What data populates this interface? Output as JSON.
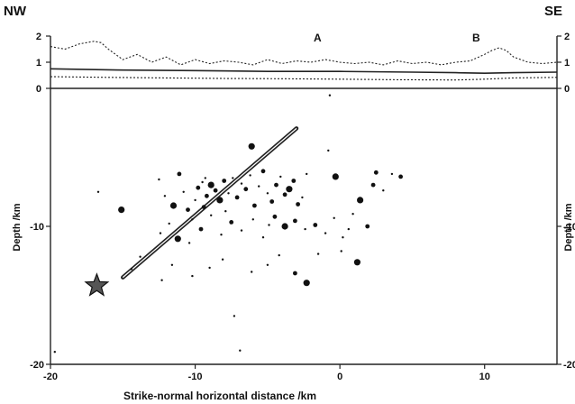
{
  "figure": {
    "corner_left": "NW",
    "corner_right": "SE",
    "marker_a": "A",
    "marker_b": "B"
  },
  "chart_data": [
    {
      "type": "line",
      "title": "",
      "ylim": [
        0,
        2
      ],
      "yticks": [
        "0",
        "1",
        "2"
      ],
      "xlim": [
        -20,
        15
      ],
      "grid": false,
      "series": [
        {
          "style": "dashed-upper",
          "x": [
            -20,
            -19,
            -18,
            -17,
            -16.5,
            -16,
            -15,
            -14,
            -13,
            -12,
            -11,
            -10,
            -9,
            -8,
            -7,
            -6,
            -5,
            -4,
            -3,
            -2,
            -1,
            0,
            1,
            2,
            3,
            4,
            5,
            6,
            7,
            8,
            9,
            10,
            10.5,
            11,
            11.5,
            12,
            13,
            14,
            15
          ],
          "values": [
            1.6,
            1.5,
            1.7,
            1.8,
            1.75,
            1.5,
            1.1,
            1.3,
            1.0,
            1.2,
            0.9,
            1.1,
            0.95,
            1.05,
            1.0,
            0.9,
            1.1,
            0.95,
            1.05,
            1.0,
            1.1,
            1.0,
            0.95,
            1.0,
            0.9,
            1.05,
            0.95,
            1.0,
            0.9,
            1.0,
            1.05,
            1.3,
            1.45,
            1.55,
            1.45,
            1.2,
            1.0,
            0.95,
            1.0
          ]
        },
        {
          "style": "solid",
          "x": [
            -20,
            -15,
            -10,
            -5,
            0,
            5,
            8,
            10,
            12,
            15
          ],
          "values": [
            0.75,
            0.7,
            0.68,
            0.65,
            0.65,
            0.62,
            0.6,
            0.58,
            0.6,
            0.62
          ]
        },
        {
          "style": "dashed-lower",
          "x": [
            -20,
            -16,
            -12,
            -8,
            -4,
            0,
            4,
            8,
            10,
            12,
            15
          ],
          "values": [
            0.45,
            0.42,
            0.4,
            0.38,
            0.37,
            0.35,
            0.33,
            0.32,
            0.35,
            0.4,
            0.42
          ]
        }
      ]
    },
    {
      "type": "scatter",
      "title": "",
      "xlabel": "Strike-normal horizontal distance /km",
      "ylabel": "Depth /km",
      "xlim": [
        -20,
        15
      ],
      "ylim": [
        -20,
        0
      ],
      "xticks": [
        "-20",
        "-10",
        "0",
        "10"
      ],
      "yticks": [
        "-10",
        "-20"
      ],
      "grid": false,
      "star": {
        "x": -16.8,
        "y": -14.3
      },
      "fault_line": {
        "x": [
          -15,
          -3
        ],
        "y": [
          -13.7,
          -2.9
        ]
      },
      "points": [
        {
          "x": -0.7,
          "y": -0.5,
          "s": 1
        },
        {
          "x": -0.8,
          "y": -4.5,
          "s": 1
        },
        {
          "x": -6.1,
          "y": -4.2,
          "s": 3
        },
        {
          "x": -16.7,
          "y": -7.5,
          "s": 1
        },
        {
          "x": -15.1,
          "y": -8.8,
          "s": 3
        },
        {
          "x": -12.5,
          "y": -6.6,
          "s": 1
        },
        {
          "x": -12.1,
          "y": -7.8,
          "s": 1
        },
        {
          "x": -11.5,
          "y": -8.5,
          "s": 3
        },
        {
          "x": -11.1,
          "y": -6.2,
          "s": 2
        },
        {
          "x": -10.8,
          "y": -7.5,
          "s": 1
        },
        {
          "x": -10.5,
          "y": -8.8,
          "s": 2
        },
        {
          "x": -10.2,
          "y": -9.5,
          "s": 1
        },
        {
          "x": -9.8,
          "y": -7.2,
          "s": 2
        },
        {
          "x": -9.5,
          "y": -6.8,
          "s": 1
        },
        {
          "x": -9.2,
          "y": -7.8,
          "s": 2
        },
        {
          "x": -8.9,
          "y": -7.0,
          "s": 3
        },
        {
          "x": -8.6,
          "y": -7.4,
          "s": 2
        },
        {
          "x": -8.3,
          "y": -8.1,
          "s": 3
        },
        {
          "x": -8.0,
          "y": -6.7,
          "s": 2
        },
        {
          "x": -7.7,
          "y": -7.6,
          "s": 1
        },
        {
          "x": -7.4,
          "y": -6.5,
          "s": 1
        },
        {
          "x": -7.1,
          "y": -7.9,
          "s": 2
        },
        {
          "x": -6.8,
          "y": -6.9,
          "s": 1
        },
        {
          "x": -6.5,
          "y": -7.3,
          "s": 2
        },
        {
          "x": -6.2,
          "y": -6.3,
          "s": 1
        },
        {
          "x": -5.9,
          "y": -8.5,
          "s": 2
        },
        {
          "x": -5.6,
          "y": -7.1,
          "s": 1
        },
        {
          "x": -5.3,
          "y": -6.0,
          "s": 2
        },
        {
          "x": -5.0,
          "y": -7.6,
          "s": 1
        },
        {
          "x": -4.7,
          "y": -8.2,
          "s": 2
        },
        {
          "x": -4.4,
          "y": -7.0,
          "s": 2
        },
        {
          "x": -4.1,
          "y": -6.4,
          "s": 1
        },
        {
          "x": -3.8,
          "y": -7.7,
          "s": 2
        },
        {
          "x": -3.5,
          "y": -7.3,
          "s": 3
        },
        {
          "x": -3.2,
          "y": -6.7,
          "s": 2
        },
        {
          "x": -2.9,
          "y": -8.4,
          "s": 2
        },
        {
          "x": -2.6,
          "y": -7.9,
          "s": 1
        },
        {
          "x": -2.3,
          "y": -6.2,
          "s": 1
        },
        {
          "x": -9.3,
          "y": -6.5,
          "s": 1
        },
        {
          "x": -10.0,
          "y": -8.1,
          "s": 1
        },
        {
          "x": -11.8,
          "y": -9.8,
          "s": 1
        },
        {
          "x": -12.4,
          "y": -10.5,
          "s": 1
        },
        {
          "x": -11.2,
          "y": -10.9,
          "s": 3
        },
        {
          "x": -10.4,
          "y": -11.2,
          "s": 1
        },
        {
          "x": -9.6,
          "y": -10.2,
          "s": 2
        },
        {
          "x": -8.9,
          "y": -9.2,
          "s": 1
        },
        {
          "x": -8.2,
          "y": -10.6,
          "s": 1
        },
        {
          "x": -7.5,
          "y": -9.7,
          "s": 2
        },
        {
          "x": -6.8,
          "y": -10.3,
          "s": 1
        },
        {
          "x": -6.0,
          "y": -9.5,
          "s": 1
        },
        {
          "x": -5.3,
          "y": -10.8,
          "s": 1
        },
        {
          "x": -4.5,
          "y": -9.3,
          "s": 2
        },
        {
          "x": -3.8,
          "y": -10.0,
          "s": 3
        },
        {
          "x": -3.1,
          "y": -9.6,
          "s": 2
        },
        {
          "x": -2.4,
          "y": -10.2,
          "s": 1
        },
        {
          "x": -1.7,
          "y": -9.9,
          "s": 2
        },
        {
          "x": -1.0,
          "y": -10.5,
          "s": 1
        },
        {
          "x": -0.4,
          "y": -9.4,
          "s": 1
        },
        {
          "x": 0.2,
          "y": -10.8,
          "s": 1
        },
        {
          "x": 0.9,
          "y": -9.1,
          "s": 1
        },
        {
          "x": 1.4,
          "y": -8.1,
          "s": 3
        },
        {
          "x": 1.9,
          "y": -10.0,
          "s": 2
        },
        {
          "x": 2.3,
          "y": -7.0,
          "s": 2
        },
        {
          "x": 2.5,
          "y": -6.1,
          "s": 2
        },
        {
          "x": 3.0,
          "y": -7.4,
          "s": 1
        },
        {
          "x": 3.6,
          "y": -6.2,
          "s": 1
        },
        {
          "x": 4.2,
          "y": -6.4,
          "s": 2
        },
        {
          "x": -0.3,
          "y": -6.4,
          "s": 3
        },
        {
          "x": 1.2,
          "y": -12.6,
          "s": 3
        },
        {
          "x": 0.1,
          "y": -11.8,
          "s": 1
        },
        {
          "x": -3.1,
          "y": -13.4,
          "s": 2
        },
        {
          "x": -2.3,
          "y": -14.1,
          "s": 3
        },
        {
          "x": -4.2,
          "y": -12.1,
          "s": 1
        },
        {
          "x": -5.0,
          "y": -12.8,
          "s": 1
        },
        {
          "x": -6.1,
          "y": -13.3,
          "s": 1
        },
        {
          "x": -8.1,
          "y": -12.4,
          "s": 1
        },
        {
          "x": -9.0,
          "y": -13.0,
          "s": 1
        },
        {
          "x": -10.2,
          "y": -13.6,
          "s": 1
        },
        {
          "x": -11.6,
          "y": -12.8,
          "s": 1
        },
        {
          "x": -12.3,
          "y": -13.9,
          "s": 1
        },
        {
          "x": -13.8,
          "y": -12.2,
          "s": 1
        },
        {
          "x": -14.4,
          "y": -13.1,
          "s": 1
        },
        {
          "x": -7.3,
          "y": -16.5,
          "s": 1
        },
        {
          "x": -6.9,
          "y": -19.0,
          "s": 1
        },
        {
          "x": -19.7,
          "y": -19.1,
          "s": 1
        },
        {
          "x": -1.5,
          "y": -12.0,
          "s": 1
        },
        {
          "x": 0.6,
          "y": -10.2,
          "s": 1
        },
        {
          "x": -9.4,
          "y": -8.6,
          "s": 2
        },
        {
          "x": -7.9,
          "y": -8.9,
          "s": 1
        },
        {
          "x": -4.9,
          "y": -9.9,
          "s": 1
        }
      ]
    }
  ]
}
